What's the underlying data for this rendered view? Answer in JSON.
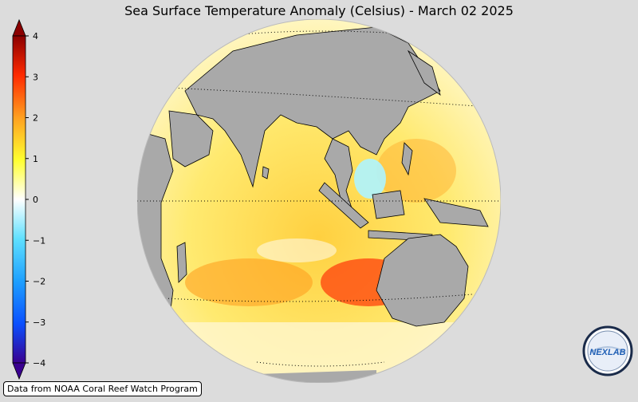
{
  "title": "Sea Surface Temperature Anomaly (Celsius) - March 02 2025",
  "colorbar": {
    "ticks": [
      "4",
      "3",
      "2",
      "1",
      "0",
      "−1",
      "−2",
      "−3",
      "−4"
    ],
    "range": [
      -4,
      4
    ],
    "colors": [
      "#3a0090",
      "#0a50ff",
      "#1ea0ff",
      "#60e0ff",
      "#ffffff",
      "#ffff30",
      "#ffa020",
      "#ff2a00",
      "#8b0000"
    ]
  },
  "map": {
    "projection": "orthographic",
    "ocean_color": "#ffe15a",
    "land_color": "#a9a9a9",
    "gridlines": "dotted"
  },
  "credit": "Data from NOAA Coral Reef Watch Program",
  "logo": {
    "text": "NEXLAB",
    "icon": "nexlab-logo-icon"
  }
}
